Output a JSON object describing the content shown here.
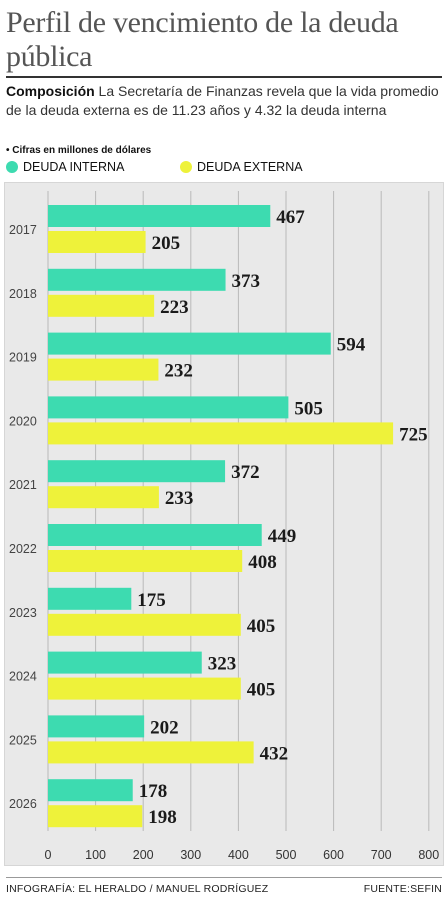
{
  "title": "Perfil de vencimiento de la deuda pública",
  "description": {
    "lead": "Composición",
    "text": " La Secretaría de Finanzas revela que la vida promedio de la deuda externa es de 11.23 años y 4.32 la deuda interna"
  },
  "units_note": "• Cifras en millones de dólares",
  "footer": {
    "credit": "INFOGRAFÍA: EL HERALDO / MANUEL RODRÍGUEZ",
    "source": "FUENTE:SEFIN"
  },
  "chart_data": {
    "type": "bar",
    "orientation": "horizontal",
    "categories": [
      "2017",
      "2018",
      "2019",
      "2020",
      "2021",
      "2022",
      "2023",
      "2024",
      "2025",
      "2026"
    ],
    "series": [
      {
        "name": "DEUDA INTERNA",
        "color": "#3ddbb0",
        "values": [
          467,
          373,
          594,
          505,
          372,
          449,
          175,
          323,
          202,
          178
        ]
      },
      {
        "name": "DEUDA EXTERNA",
        "color": "#eef23a",
        "values": [
          205,
          223,
          232,
          725,
          233,
          408,
          405,
          405,
          432,
          198
        ]
      }
    ],
    "xlim": [
      0,
      800
    ],
    "xticks": [
      "0",
      "100",
      "200",
      "300",
      "400",
      "500",
      "600",
      "700",
      "800"
    ],
    "grid": true,
    "legend_placement": "top-left",
    "data_labels": true
  }
}
